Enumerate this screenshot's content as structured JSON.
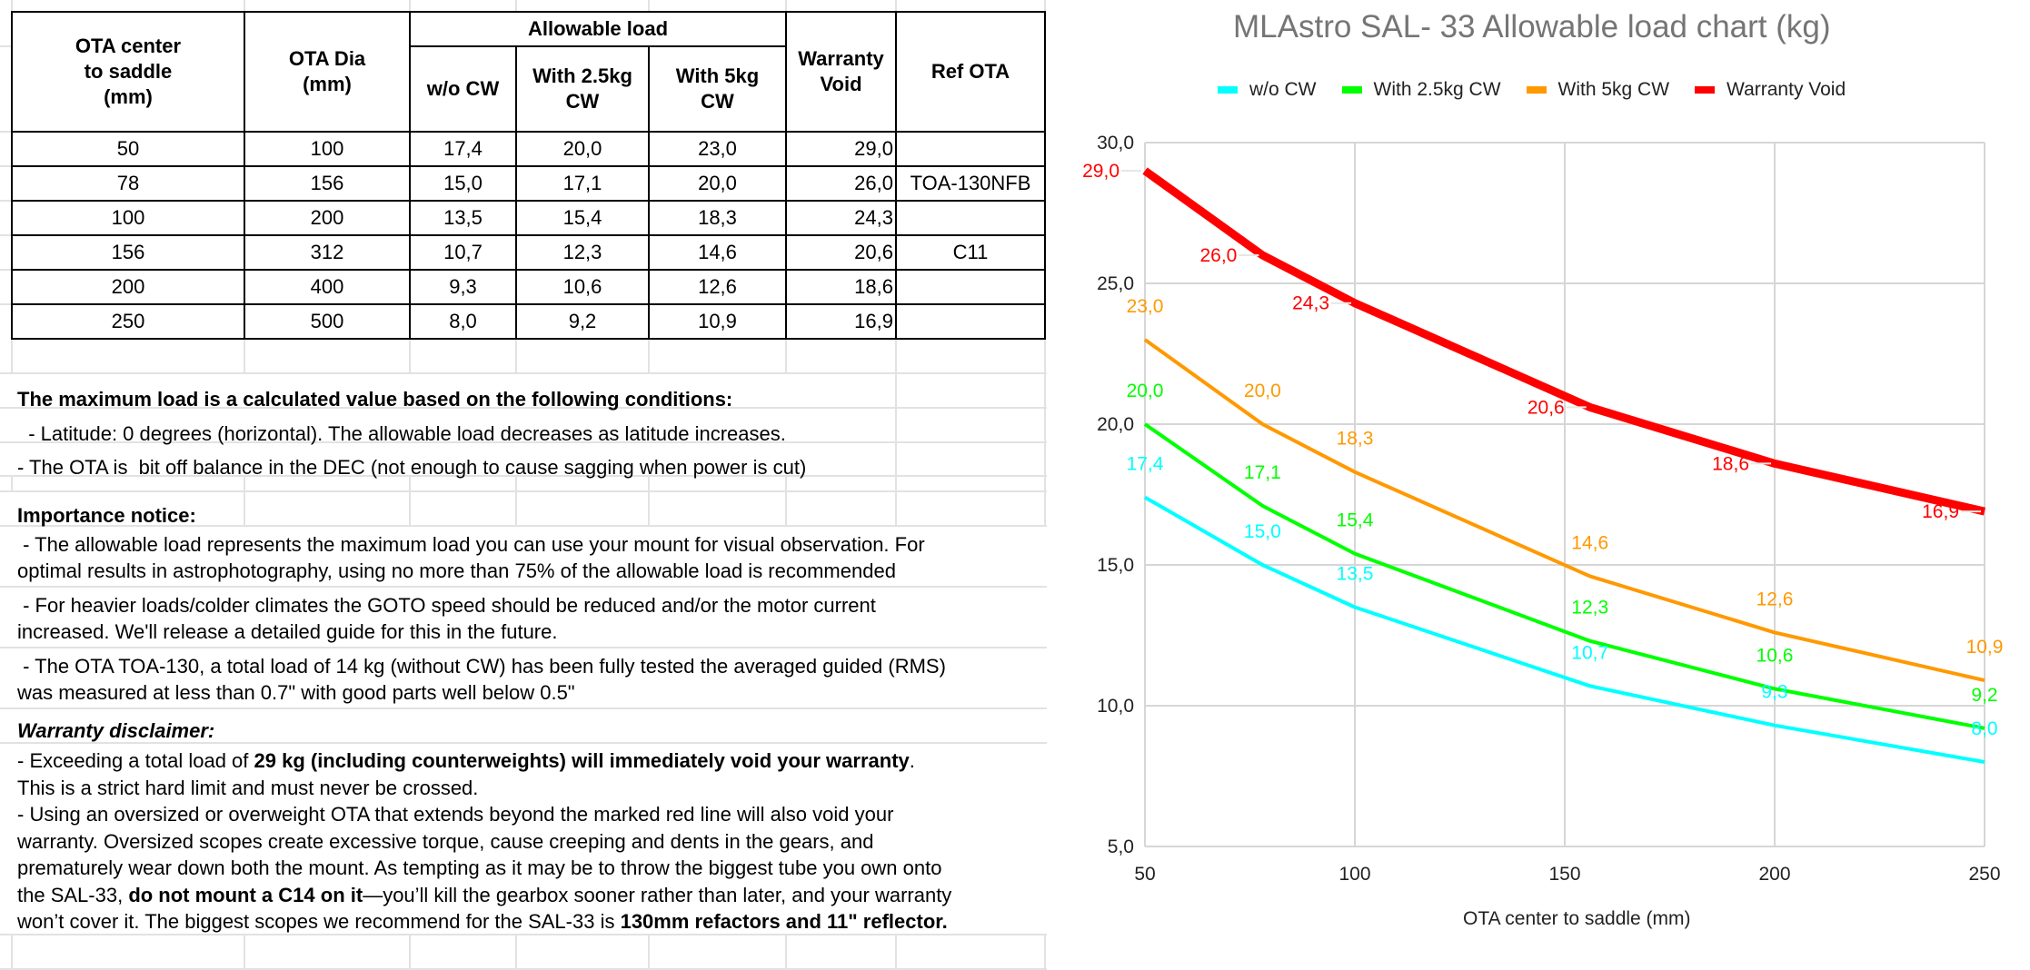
{
  "table": {
    "headers": {
      "center": "OTA center\nto saddle\n(mm)",
      "center_lines": [
        "OTA center",
        "to saddle",
        "(mm)"
      ],
      "dia_lines": [
        "OTA Dia",
        "(mm)"
      ],
      "allowable_group": "Allowable load",
      "wo_cw": "w/o CW",
      "cw25_lines": [
        "With 2.5kg",
        "CW"
      ],
      "cw5_lines": [
        "With 5kg",
        "CW"
      ],
      "warranty_lines": [
        "Warranty",
        "Void"
      ],
      "ref": "Ref OTA"
    },
    "rows": [
      {
        "center": "50",
        "dia": "100",
        "wo": "17,4",
        "c25": "20,0",
        "c5": "23,0",
        "void": "29,0",
        "ref": ""
      },
      {
        "center": "78",
        "dia": "156",
        "wo": "15,0",
        "c25": "17,1",
        "c5": "20,0",
        "void": "26,0",
        "ref": "TOA-130NFB"
      },
      {
        "center": "100",
        "dia": "200",
        "wo": "13,5",
        "c25": "15,4",
        "c5": "18,3",
        "void": "24,3",
        "ref": ""
      },
      {
        "center": "156",
        "dia": "312",
        "wo": "10,7",
        "c25": "12,3",
        "c5": "14,6",
        "void": "20,6",
        "ref": "C11"
      },
      {
        "center": "200",
        "dia": "400",
        "wo": "9,3",
        "c25": "10,6",
        "c5": "12,6",
        "void": "18,6",
        "ref": ""
      },
      {
        "center": "250",
        "dia": "500",
        "wo": "8,0",
        "c25": "9,2",
        "c5": "10,9",
        "void": "16,9",
        "ref": ""
      }
    ]
  },
  "notes": {
    "conditions_heading": "The maximum load is a calculated value based on the following conditions:",
    "latitude": "  - Latitude: 0 degrees (horizontal). The allowable load decreases as latitude increases.",
    "balance": "- The OTA is  bit off balance in the DEC (not enough to cause sagging when power is cut)",
    "importance_heading": "Importance notice:",
    "visual_1": " - The allowable load represents the maximum load you can use your mount for visual observation. For",
    "visual_2": "optimal results in astrophotography, using no more than 75% of the allowable load is recommended",
    "heavier_1": " - For heavier loads/colder climates the GOTO speed should be reduced and/or the motor current",
    "heavier_2": "increased. We'll release a detailed guide for this in the future.",
    "toa_1": " - The OTA TOA-130, a total load of 14 kg (without CW) has been fully tested the averaged guided (RMS)",
    "toa_2": "was measured at less than 0.7\" with good parts well below 0.5\"",
    "warranty_heading": "Warranty disclaimer:",
    "w1_a": "- Exceeding a total load of ",
    "w1_b": "29 kg (including counterweights) will immediately void your warranty",
    "w1_c": ".",
    "w2": "This is a strict hard limit and must never be crossed.",
    "w3": "- Using an oversized or overweight OTA that extends beyond the marked red line will also void your",
    "w4": "warranty. Oversized scopes create excessive torque, cause creeping and dents in the gears, and",
    "w5": "prematurely wear down both the mount. As tempting as it may be to throw the biggest tube you own onto",
    "w6_a": "the SAL-33, ",
    "w6_b": "do not mount a C14 on it",
    "w6_c": "—you’ll kill the gearbox sooner rather than later, and your warranty",
    "w7_a": "won’t cover it. The biggest scopes we recommend for the SAL-33 is ",
    "w7_b": "130mm refactors and 11\" reflector."
  },
  "chart_data": {
    "type": "line",
    "title": "MLAstro SAL- 33 Allowable load chart (kg)",
    "xlabel": "OTA center to saddle (mm)",
    "ylabel": "",
    "x": [
      50,
      78,
      100,
      156,
      200,
      250
    ],
    "xlim": [
      50,
      250
    ],
    "ylim": [
      5,
      30
    ],
    "xticks": [
      50,
      100,
      150,
      200,
      250
    ],
    "xtick_labels": [
      "50",
      "100",
      "150",
      "200",
      "250"
    ],
    "yticks": [
      5,
      10,
      15,
      20,
      25,
      30
    ],
    "ytick_labels": [
      "5,0",
      "10,0",
      "15,0",
      "20,0",
      "25,0",
      "30,0"
    ],
    "grid": true,
    "legend": "top",
    "series": [
      {
        "name": "w/o CW",
        "color": "#00ffff",
        "values": [
          17.4,
          15.0,
          13.5,
          10.7,
          9.3,
          8.0
        ],
        "labels": [
          "17,4",
          "15,0",
          "13,5",
          "10,7",
          "9,3",
          "8,0"
        ]
      },
      {
        "name": "With 2.5kg CW",
        "color": "#00ff00",
        "values": [
          20.0,
          17.1,
          15.4,
          12.3,
          10.6,
          9.2
        ],
        "labels": [
          "20,0",
          "17,1",
          "15,4",
          "12,3",
          "10,6",
          "9,2"
        ]
      },
      {
        "name": "With 5kg CW",
        "color": "#ff9900",
        "values": [
          23.0,
          20.0,
          18.3,
          14.6,
          12.6,
          10.9
        ],
        "labels": [
          "23,0",
          "20,0",
          "18,3",
          "14,6",
          "12,6",
          "10,9"
        ]
      },
      {
        "name": "Warranty Void",
        "color": "#ff0000",
        "values": [
          29.0,
          26.0,
          24.3,
          20.6,
          18.6,
          16.9
        ],
        "labels": [
          "29,0",
          "26,0",
          "24,3",
          "20,6",
          "18,6",
          "16,9"
        ]
      }
    ]
  }
}
